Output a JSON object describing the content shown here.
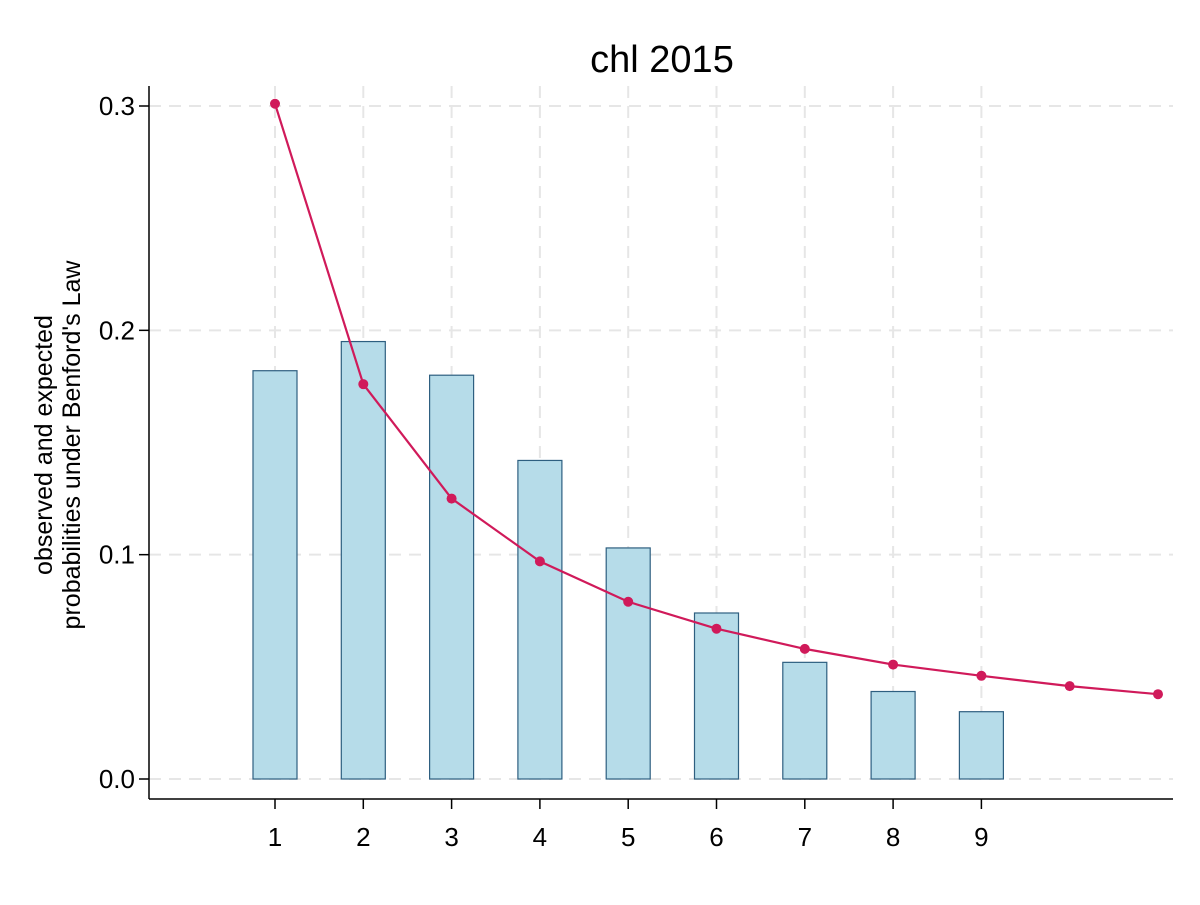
{
  "chart_data": {
    "type": "bar",
    "title": "chl 2015",
    "ylabel_lines": [
      "observed and expected",
      "probabilities under Benford's Law"
    ],
    "xlabel": "",
    "x_ticks": [
      1,
      2,
      3,
      4,
      5,
      6,
      7,
      8,
      9
    ],
    "y_ticks": [
      "0.0",
      "0.1",
      "0.2",
      "0.3"
    ],
    "ylim": [
      0,
      0.3
    ],
    "grid": true,
    "bar_color": "#b6dce9",
    "bar_edge_color": "#2e5f80",
    "line_color": "#d01a5a",
    "observed": {
      "x": [
        0,
        1,
        2,
        3,
        4,
        5,
        6,
        7,
        8,
        9
      ],
      "values": [
        0.0,
        0.182,
        0.195,
        0.18,
        0.142,
        0.103,
        0.074,
        0.052,
        0.039,
        0.03
      ]
    },
    "expected": {
      "x": [
        1,
        2,
        3,
        4,
        5,
        6,
        7,
        8,
        9,
        10,
        11
      ],
      "values": [
        0.301,
        0.176,
        0.125,
        0.097,
        0.079,
        0.067,
        0.058,
        0.051,
        0.046,
        0.0414,
        0.0378
      ]
    }
  }
}
